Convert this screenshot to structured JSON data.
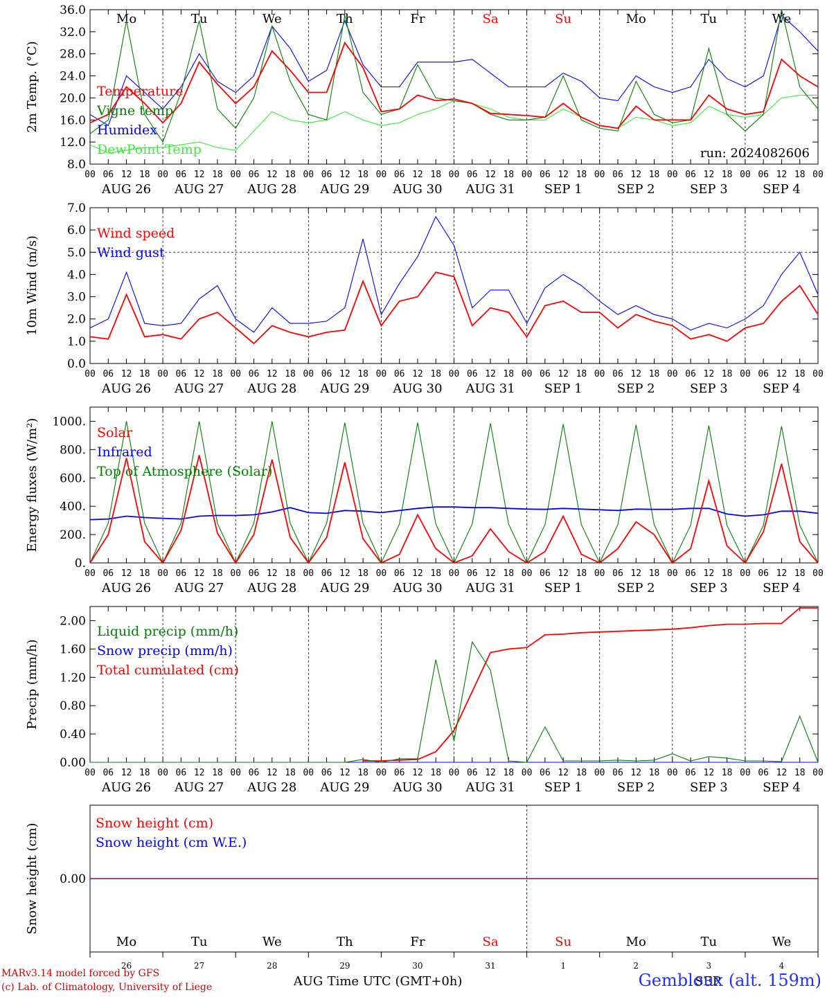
{
  "run_label": "run: 2024082606",
  "days": [
    {
      "weekday": "Mo",
      "day": "26",
      "label": "AUG 26",
      "weekend": false
    },
    {
      "weekday": "Tu",
      "day": "27",
      "label": "AUG 27",
      "weekend": false
    },
    {
      "weekday": "We",
      "day": "28",
      "label": "AUG 28",
      "weekend": false
    },
    {
      "weekday": "Th",
      "day": "29",
      "label": "AUG 29",
      "weekend": false
    },
    {
      "weekday": "Fr",
      "day": "30",
      "label": "AUG 30",
      "weekend": false
    },
    {
      "weekday": "Sa",
      "day": "31",
      "label": "AUG 31",
      "weekend": true
    },
    {
      "weekday": "Su",
      "day": "1",
      "label": "SEP  1",
      "weekend": true
    },
    {
      "weekday": "Mo",
      "day": "2",
      "label": "SEP  2",
      "weekend": false
    },
    {
      "weekday": "Tu",
      "day": "3",
      "label": "SEP  3",
      "weekend": false
    },
    {
      "weekday": "We",
      "day": "4",
      "label": "SEP  4",
      "weekend": false
    }
  ],
  "hour_ticks": [
    "00",
    "06",
    "12",
    "18"
  ],
  "month_labels": {
    "first": "AUG",
    "second": "SEP"
  },
  "xlabel": "Time UTC (GMT+0h)",
  "credit_line1": "MARv3.14 model forced by GFS",
  "credit_line2": "(c) Lab. of Climatology, University of Liege",
  "station": "Gembloux (alt. 159m)",
  "colors": {
    "red": "#ff0000",
    "green": "#008000",
    "blue": "#0000ff",
    "lightgreen": "#33ee33",
    "purple": "#800080"
  },
  "chart_data": [
    {
      "type": "line",
      "ylabel": "2m Temp. (°C)",
      "ylim": [
        8,
        36
      ],
      "yticks": [
        "8.0",
        "12.0",
        "16.0",
        "20.0",
        "24.0",
        "28.0",
        "32.0",
        "36.0"
      ],
      "ytick_values": [
        8,
        12,
        16,
        20,
        24,
        28,
        32,
        36
      ],
      "x_hours": [
        0,
        6,
        12,
        18,
        24,
        30,
        36,
        42,
        48,
        54,
        60,
        66,
        72,
        78,
        84,
        90,
        96,
        102,
        108,
        114,
        120,
        126,
        132,
        138,
        144,
        150,
        156,
        162,
        168,
        174,
        180,
        186,
        192,
        198,
        204,
        210,
        216,
        222,
        228,
        234,
        240
      ],
      "series": [
        {
          "name": "Temperature",
          "color": "red",
          "values": [
            15.5,
            17,
            22,
            19,
            15.5,
            19,
            26.5,
            22.5,
            19,
            22,
            28.5,
            25,
            21,
            21,
            30,
            25.5,
            17.5,
            18,
            20.5,
            19.5,
            19.8,
            19,
            17.2,
            17,
            16.8,
            16.5,
            19,
            16.5,
            15,
            14.5,
            18.5,
            16,
            16,
            16,
            20.5,
            18,
            17,
            17.5,
            27,
            24,
            22
          ]
        },
        {
          "name": "Vigne temp",
          "color": "green",
          "values": [
            13.5,
            16,
            34,
            17,
            12,
            21,
            34,
            18,
            14.5,
            20,
            33,
            23,
            17,
            16,
            35,
            21,
            17,
            18,
            26,
            20,
            19.5,
            19,
            17,
            16,
            16,
            16.5,
            24,
            16,
            14.5,
            14,
            23,
            17,
            15.5,
            16,
            29,
            17,
            14,
            17,
            36,
            22,
            18
          ]
        },
        {
          "name": "Humidex",
          "color": "blue",
          "values": [
            17,
            15,
            24,
            21,
            18,
            22,
            28,
            23,
            21,
            24,
            33,
            29,
            23,
            25,
            34,
            26,
            22,
            22,
            26.5,
            26.5,
            26.5,
            27,
            24.5,
            22,
            22,
            22,
            24.5,
            23,
            20,
            19.5,
            24,
            22,
            21,
            22,
            27,
            23.5,
            22,
            24,
            35,
            32,
            28.5
          ]
        },
        {
          "name": "DewPoint Temp",
          "color": "lightgreen",
          "values": [
            11.5,
            10,
            10.5,
            11,
            11,
            11.5,
            12,
            11,
            10.5,
            14,
            17.5,
            16,
            15.5,
            16,
            17.5,
            16,
            15,
            15.5,
            17,
            18,
            19.5,
            19,
            18,
            16.5,
            16,
            16,
            18,
            16.5,
            15,
            14.5,
            16.5,
            16,
            15,
            15.5,
            18.5,
            17,
            16.5,
            17,
            20,
            20.5,
            20.5
          ]
        }
      ],
      "annotation": "run_label"
    },
    {
      "type": "line",
      "ylabel": "10m Wind (m/s)",
      "ylim": [
        0,
        7
      ],
      "yticks": [
        "0.0",
        "1.0",
        "2.0",
        "3.0",
        "4.0",
        "5.0",
        "6.0",
        "7.0"
      ],
      "ytick_values": [
        0,
        1,
        2,
        3,
        4,
        5,
        6,
        7
      ],
      "dashed_ref": 5.0,
      "x_hours": [
        0,
        6,
        12,
        18,
        24,
        30,
        36,
        42,
        48,
        54,
        60,
        66,
        72,
        78,
        84,
        90,
        96,
        102,
        108,
        114,
        120,
        126,
        132,
        138,
        144,
        150,
        156,
        162,
        168,
        174,
        180,
        186,
        192,
        198,
        204,
        210,
        216,
        222,
        228,
        234,
        240
      ],
      "series": [
        {
          "name": "Wind speed",
          "color": "red",
          "values": [
            1.2,
            1.1,
            3.1,
            1.2,
            1.3,
            1.1,
            2.0,
            2.3,
            1.6,
            0.9,
            1.7,
            1.4,
            1.2,
            1.4,
            1.5,
            3.7,
            1.7,
            2.8,
            3.0,
            4.1,
            3.9,
            1.7,
            2.5,
            2.3,
            1.2,
            2.6,
            2.8,
            2.3,
            2.3,
            1.6,
            2.2,
            1.9,
            1.7,
            1.1,
            1.3,
            1.0,
            1.6,
            1.8,
            2.8,
            3.5,
            2.2
          ]
        },
        {
          "name": "Wind gust",
          "color": "blue",
          "values": [
            1.6,
            2.0,
            4.1,
            1.8,
            1.7,
            1.8,
            2.9,
            3.5,
            2.0,
            1.4,
            2.5,
            1.8,
            1.8,
            1.9,
            2.5,
            5.6,
            2.2,
            3.6,
            4.8,
            6.6,
            5.3,
            2.5,
            3.3,
            3.3,
            1.8,
            3.4,
            4.0,
            3.5,
            2.8,
            2.2,
            2.6,
            2.2,
            2.0,
            1.5,
            1.8,
            1.6,
            2.0,
            2.6,
            4.0,
            5.0,
            3.1
          ]
        }
      ]
    },
    {
      "type": "line",
      "ylabel": "Energy fluxes (W/m²)",
      "ylim": [
        0,
        1100
      ],
      "yticks": [
        "0.",
        "200.",
        "400.",
        "600.",
        "800.",
        "1000."
      ],
      "ytick_values": [
        0,
        200,
        400,
        600,
        800,
        1000
      ],
      "x_hours": [
        0,
        6,
        12,
        18,
        24,
        30,
        36,
        42,
        48,
        54,
        60,
        66,
        72,
        78,
        84,
        90,
        96,
        102,
        108,
        114,
        120,
        126,
        132,
        138,
        144,
        150,
        156,
        162,
        168,
        174,
        180,
        186,
        192,
        198,
        204,
        210,
        216,
        222,
        228,
        234,
        240
      ],
      "series": [
        {
          "name": "Solar",
          "color": "red",
          "values": [
            0,
            200,
            740,
            150,
            0,
            230,
            760,
            210,
            0,
            200,
            730,
            180,
            0,
            180,
            710,
            170,
            0,
            60,
            340,
            100,
            0,
            50,
            240,
            80,
            0,
            80,
            330,
            60,
            0,
            100,
            290,
            200,
            0,
            100,
            580,
            120,
            0,
            220,
            700,
            150,
            0
          ]
        },
        {
          "name": "Infrared",
          "color": "blue",
          "values": [
            305,
            310,
            330,
            320,
            315,
            310,
            330,
            335,
            335,
            340,
            360,
            390,
            355,
            350,
            370,
            365,
            355,
            370,
            385,
            395,
            395,
            390,
            390,
            385,
            380,
            378,
            385,
            380,
            375,
            370,
            380,
            378,
            378,
            385,
            385,
            345,
            330,
            340,
            365,
            365,
            350
          ]
        },
        {
          "name": "Top of Atmosphere (Solar)",
          "color": "green",
          "values": [
            0,
            280,
            1000,
            280,
            0,
            280,
            1000,
            280,
            0,
            280,
            1000,
            280,
            0,
            280,
            990,
            280,
            0,
            275,
            990,
            275,
            0,
            275,
            985,
            275,
            0,
            270,
            980,
            270,
            0,
            270,
            975,
            270,
            0,
            265,
            970,
            265,
            0,
            265,
            965,
            265,
            0
          ]
        }
      ]
    },
    {
      "type": "line",
      "ylabel": "Precip (mm/h)",
      "ylim": [
        0,
        2.2
      ],
      "yticks": [
        "0.00",
        "0.40",
        "0.80",
        "1.20",
        "1.60",
        "2.00"
      ],
      "ytick_values": [
        0,
        0.4,
        0.8,
        1.2,
        1.6,
        2.0
      ],
      "x_hours": [
        0,
        6,
        12,
        18,
        24,
        30,
        36,
        42,
        48,
        54,
        60,
        66,
        72,
        78,
        84,
        90,
        96,
        102,
        108,
        114,
        120,
        126,
        132,
        138,
        144,
        150,
        156,
        162,
        168,
        174,
        180,
        186,
        192,
        198,
        204,
        210,
        216,
        222,
        228,
        234,
        240
      ],
      "series": [
        {
          "name": "Liquid precip (mm/h)",
          "color": "green",
          "values": [
            0,
            0,
            0,
            0,
            0,
            0,
            0,
            0,
            0,
            0,
            0,
            0,
            0,
            0,
            0,
            0.04,
            0,
            0.05,
            0.05,
            1.45,
            0.3,
            1.7,
            1.3,
            0.02,
            0,
            0.5,
            0.02,
            0.02,
            0.02,
            0.03,
            0.02,
            0.03,
            0.12,
            0.02,
            0.08,
            0.06,
            0.02,
            0.02,
            0.01,
            0.65,
            0
          ]
        },
        {
          "name": "Snow precip (mm/h)",
          "color": "blue",
          "values": [
            0,
            0,
            0,
            0,
            0,
            0,
            0,
            0,
            0,
            0,
            0,
            0,
            0,
            0,
            0,
            0,
            0,
            0,
            0,
            0,
            0,
            0,
            0,
            0,
            0,
            0,
            0,
            0,
            0,
            0,
            0,
            0,
            0,
            0,
            0,
            0,
            0,
            0,
            0,
            0,
            0
          ]
        },
        {
          "name": "Total cumulated (cm)",
          "color": "red",
          "values": [
            null,
            null,
            null,
            null,
            null,
            null,
            null,
            null,
            null,
            null,
            null,
            null,
            null,
            null,
            null,
            0.02,
            0.02,
            0.03,
            0.04,
            0.15,
            0.45,
            1.0,
            1.55,
            1.6,
            1.62,
            1.8,
            1.81,
            1.83,
            1.84,
            1.85,
            1.86,
            1.87,
            1.88,
            1.9,
            1.93,
            1.95,
            1.95,
            1.96,
            1.96,
            2.18,
            2.18
          ]
        }
      ]
    },
    {
      "type": "line",
      "ylabel": "Snow height (cm)",
      "yticks": [
        "0.00"
      ],
      "ytick_values": [
        0
      ],
      "series": [
        {
          "name": "Snow height (cm)",
          "color": "red",
          "values": [
            0,
            0
          ]
        },
        {
          "name": "Snow height (cm W.E.)",
          "color": "blue",
          "values": [
            0,
            0
          ]
        }
      ]
    }
  ]
}
